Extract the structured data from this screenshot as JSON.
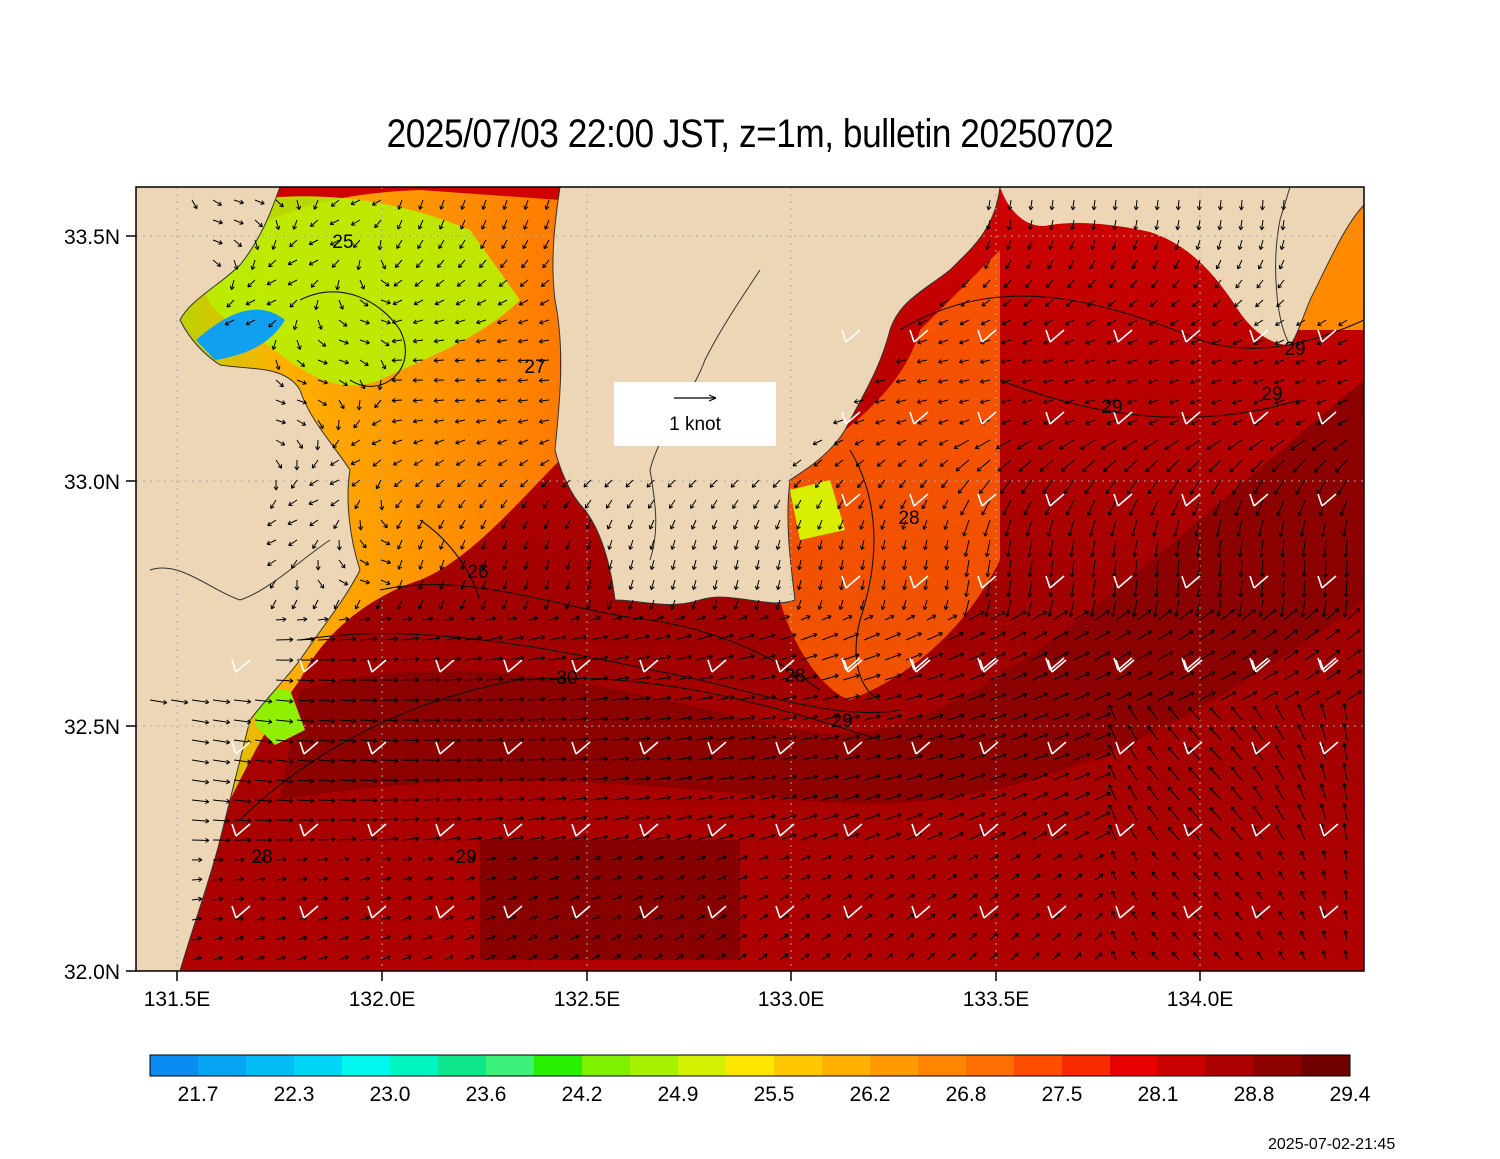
{
  "title": "2025/07/03 22:00 JST, z=1m, bulletin 20250702",
  "timestamp": "2025-07-02-21:45",
  "reference_vector": {
    "length_knots": 1,
    "label": "1 knot"
  },
  "axes": {
    "lat_ticks": [
      "33.5N",
      "33.0N",
      "32.5N",
      "32.0N"
    ],
    "lon_ticks": [
      "131.5E",
      "132.0E",
      "132.5E",
      "133.0E",
      "133.5E",
      "134.0E"
    ],
    "lon_range": [
      131.4,
      134.4
    ],
    "lat_range": [
      32.0,
      33.6
    ],
    "grid": "dotted"
  },
  "contour_labels": [
    "25",
    "27",
    "26",
    "28",
    "28",
    "30",
    "29",
    "29",
    "29",
    "29",
    "28",
    "29",
    "29"
  ],
  "colorbar": {
    "colors": [
      "#0a8cf2",
      "#07a4f5",
      "#06bcf7",
      "#00d4f7",
      "#00f7ee",
      "#00f5c0",
      "#10e68c",
      "#3df27a",
      "#28f000",
      "#7ff000",
      "#a6f000",
      "#d3f000",
      "#ffe600",
      "#ffc800",
      "#ffb000",
      "#ff9a00",
      "#ff8400",
      "#ff6e00",
      "#ff4e00",
      "#f72a00",
      "#e60000",
      "#c80000",
      "#aa0000",
      "#8c0000",
      "#6e0000"
    ],
    "tick_labels": [
      "21.7",
      "22.3",
      "23.0",
      "23.6",
      "24.2",
      "24.9",
      "25.5",
      "26.2",
      "26.8",
      "27.5",
      "28.1",
      "28.8",
      "29.4"
    ]
  },
  "palette": {
    "land": "#ecd6b6",
    "sea_warm": "#b40000",
    "sea_hot": "#8a0000"
  }
}
